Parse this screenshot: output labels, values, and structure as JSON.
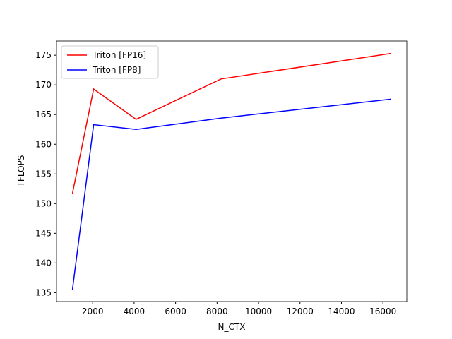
{
  "chart_data": {
    "type": "line",
    "x_label": "N_CTX",
    "y_label": "TFLOPS",
    "x": [
      1024,
      2048,
      4096,
      8192,
      16384
    ],
    "series": [
      {
        "name": "Triton [FP16]",
        "color": "#ff0000",
        "values": [
          151.7,
          169.3,
          164.2,
          171.0,
          175.3
        ]
      },
      {
        "name": "Triton [FP8]",
        "color": "#0000ff",
        "values": [
          135.5,
          163.3,
          162.5,
          164.4,
          167.6
        ]
      }
    ],
    "xlim": [
      256,
      17152
    ],
    "ylim": [
      133.5,
      177.4
    ],
    "xticks": [
      2000,
      4000,
      6000,
      8000,
      10000,
      12000,
      14000,
      16000
    ],
    "yticks": [
      135,
      140,
      145,
      150,
      155,
      160,
      165,
      170,
      175
    ],
    "legend": "upper left",
    "grid": false
  }
}
